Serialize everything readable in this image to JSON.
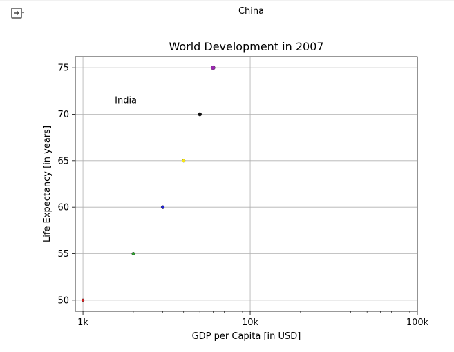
{
  "toolbar": {
    "output_toggle_icon": "collapse-output-icon"
  },
  "chart_data": {
    "type": "scatter",
    "title": "World Development in 2007",
    "xlabel": "GDP per Capita [in USD]",
    "ylabel": "Life Expectancy [in years]",
    "xscale": "log",
    "xlim": [
      900,
      100000
    ],
    "ylim": [
      48.8,
      76.2
    ],
    "xticks": [
      {
        "value": 1000,
        "label": "1k"
      },
      {
        "value": 10000,
        "label": "10k"
      },
      {
        "value": 100000,
        "label": "100k"
      }
    ],
    "yticks": [
      {
        "value": 50,
        "label": "50"
      },
      {
        "value": 55,
        "label": "55"
      },
      {
        "value": 60,
        "label": "60"
      },
      {
        "value": 65,
        "label": "65"
      },
      {
        "value": 70,
        "label": "70"
      },
      {
        "value": 75,
        "label": "75"
      }
    ],
    "grid": true,
    "points": [
      {
        "x": 1000,
        "y": 50,
        "color": "#e31a1c",
        "size": 2.0
      },
      {
        "x": 2000,
        "y": 55,
        "color": "#2ca02c",
        "size": 2.2
      },
      {
        "x": 3000,
        "y": 60,
        "color": "#1f1fd6",
        "size": 2.4
      },
      {
        "x": 4000,
        "y": 65,
        "color": "#f5e61a",
        "size": 2.2
      },
      {
        "x": 5000,
        "y": 70,
        "color": "#111111",
        "size": 2.6
      },
      {
        "x": 6000,
        "y": 75,
        "color": "#9b27b0",
        "size": 3.0
      }
    ],
    "annotations": [
      {
        "text": "India",
        "x": 1550,
        "y": 71.2
      },
      {
        "text": "China",
        "x": 8500,
        "y": 80.8
      }
    ]
  }
}
